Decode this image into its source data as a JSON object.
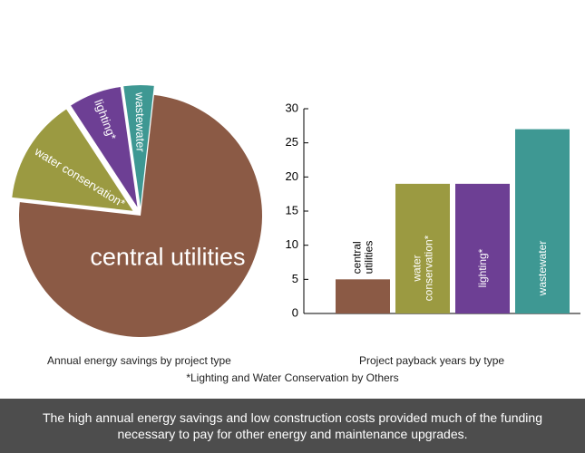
{
  "colors": {
    "central_utilities": "#8b5a45",
    "water_conservation": "#9b9a41",
    "lighting": "#6d3f94",
    "wastewater": "#3e9893"
  },
  "chart_data": [
    {
      "type": "pie",
      "title": "Annual energy savings by project type",
      "slices": [
        {
          "label": "wastewater",
          "value": 4,
          "exploded": true
        },
        {
          "label": "central utilities",
          "value": 75,
          "exploded": false
        },
        {
          "label": "water conservation*",
          "value": 14,
          "exploded": true
        },
        {
          "label": "lighting*",
          "value": 7,
          "exploded": true
        }
      ]
    },
    {
      "type": "bar",
      "title": "Project payback years by type",
      "categories": [
        "central utilities",
        "water conservation*",
        "lighting*",
        "wastewater"
      ],
      "values": [
        5,
        19,
        19,
        27
      ],
      "ylim": [
        0,
        30
      ],
      "yticks": [
        0,
        5,
        10,
        15,
        20,
        25,
        30
      ],
      "xlabel": "",
      "ylabel": ""
    }
  ],
  "footnote": "*Lighting and Water Conservation by Others",
  "banner": "The high annual energy savings and low construction costs provided much of the funding necessary to pay for other energy and maintenance upgrades."
}
